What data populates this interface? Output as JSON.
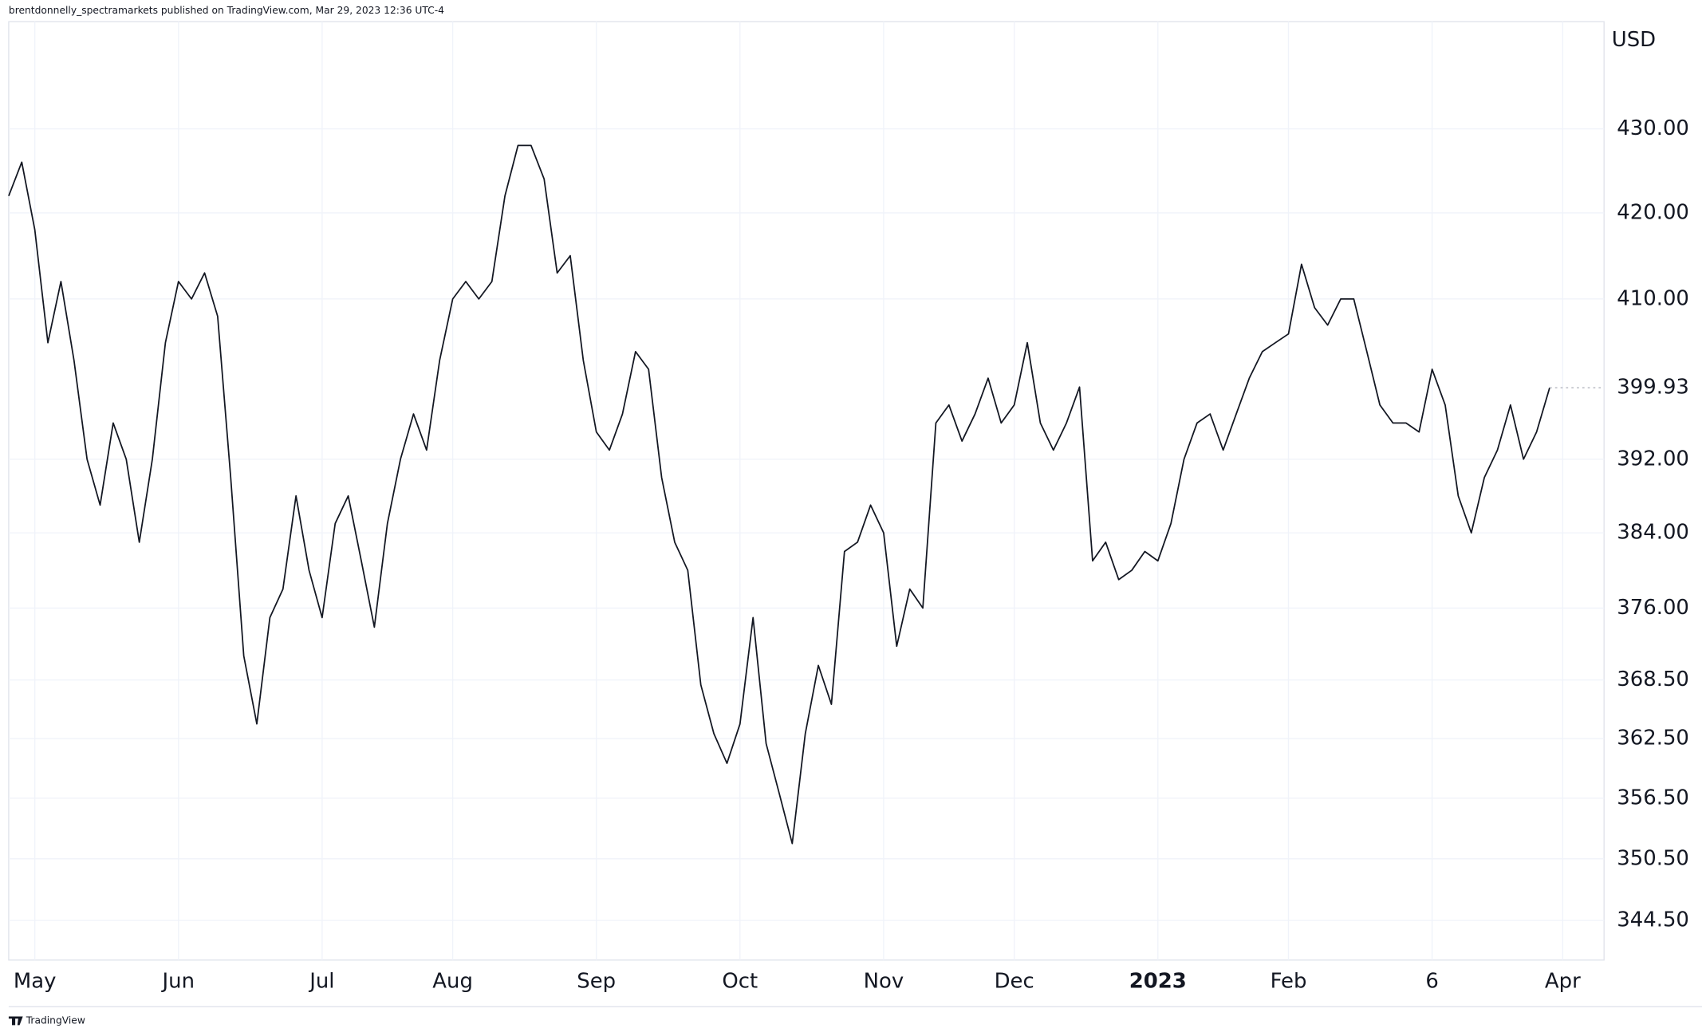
{
  "chart_data": {
    "type": "line",
    "title": "brentdonnelly_spectramarkets published on TradingView.com, Mar 29, 2023 12:36 UTC-4",
    "y_axis_label": "USD",
    "watermark": "TradingView",
    "color": "#131722",
    "log_scale": true,
    "grid": true,
    "ylim": [
      340.7,
      443.1
    ],
    "yticks": [
      {
        "value": 430,
        "label": "430.00"
      },
      {
        "value": 420,
        "label": "420.00"
      },
      {
        "value": 410,
        "label": "410.00"
      },
      {
        "value": 392,
        "label": "392.00"
      },
      {
        "value": 384,
        "label": "384.00"
      },
      {
        "value": 376,
        "label": "376.00"
      },
      {
        "value": 368.5,
        "label": "368.50"
      },
      {
        "value": 362.5,
        "label": "362.50"
      },
      {
        "value": 356.5,
        "label": "356.50"
      },
      {
        "value": 350.5,
        "label": "350.50"
      },
      {
        "value": 344.5,
        "label": "344.50"
      }
    ],
    "categories": [
      null,
      null,
      "May",
      null,
      null,
      null,
      null,
      null,
      null,
      null,
      null,
      null,
      null,
      "Jun",
      null,
      null,
      null,
      null,
      null,
      null,
      null,
      null,
      null,
      null,
      "Jul",
      null,
      null,
      null,
      null,
      null,
      null,
      null,
      null,
      null,
      "Aug",
      null,
      null,
      null,
      null,
      null,
      null,
      null,
      null,
      null,
      null,
      "Sep",
      null,
      null,
      null,
      null,
      null,
      null,
      null,
      null,
      null,
      null,
      "Oct",
      null,
      null,
      null,
      null,
      null,
      null,
      null,
      null,
      null,
      null,
      "Nov",
      null,
      null,
      null,
      null,
      null,
      null,
      null,
      null,
      null,
      "Dec",
      null,
      null,
      null,
      null,
      null,
      null,
      null,
      null,
      null,
      null,
      "2023",
      null,
      null,
      null,
      null,
      null,
      null,
      null,
      null,
      null,
      "Feb",
      null,
      null,
      null,
      null,
      null,
      null,
      null,
      null,
      null,
      null,
      "6",
      null,
      null,
      null,
      null,
      null,
      null,
      null,
      null,
      null,
      "Apr"
    ],
    "values": [
      422,
      426,
      418,
      405,
      412,
      403,
      392,
      387,
      396,
      392,
      383,
      392,
      405,
      412,
      410,
      413,
      408,
      390,
      371,
      364,
      375,
      378,
      388,
      380,
      375,
      385,
      388,
      381,
      374,
      385,
      392,
      397,
      393,
      403,
      410,
      412,
      410,
      412,
      422,
      428,
      428,
      424,
      413,
      415,
      403,
      395,
      393,
      397,
      404,
      402,
      390,
      383,
      380,
      368,
      363,
      360,
      364,
      375,
      362,
      357,
      352,
      363,
      370,
      366,
      382,
      383,
      387,
      384,
      372,
      378,
      376,
      396,
      398,
      394,
      397,
      401,
      396,
      398,
      405,
      396,
      393,
      396,
      400,
      381,
      383,
      379,
      380,
      382,
      381,
      385,
      392,
      396,
      397,
      393,
      397,
      401,
      404,
      405,
      406,
      414,
      409,
      407,
      410,
      410,
      404,
      398,
      396,
      396,
      395,
      402,
      398,
      388,
      384,
      390,
      393,
      398,
      392,
      395,
      399.93,
      null
    ]
  }
}
